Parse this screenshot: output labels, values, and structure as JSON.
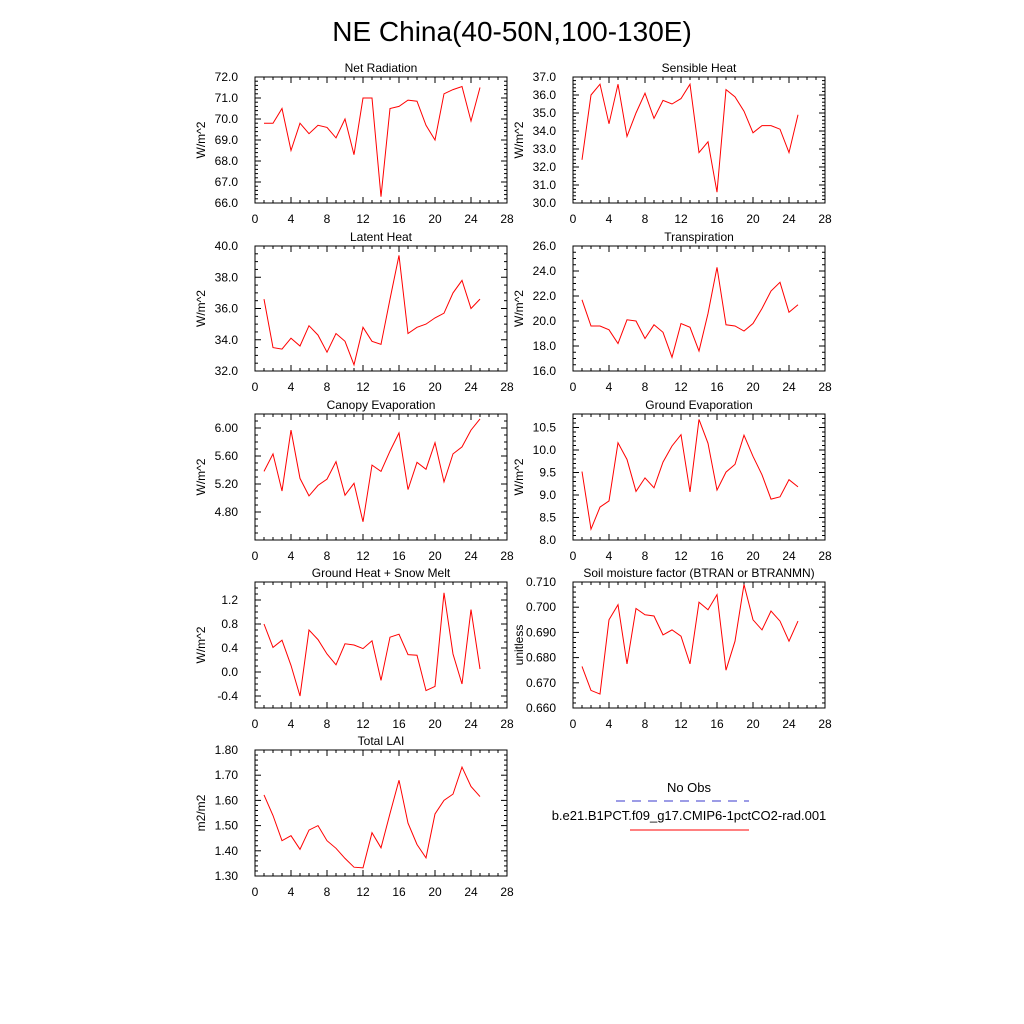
{
  "figure": {
    "title": "NE China(40-50N,100-130E)"
  },
  "legend": {
    "entries": [
      {
        "label": "No Obs",
        "color": "#3a3acc",
        "dash": true
      },
      {
        "label": "b.e21.B1PCT.f09_g17.CMIP6-1pctCO2-rad.001",
        "color": "#ff0000",
        "dash": false
      }
    ]
  },
  "chart_data": [
    {
      "type": "line",
      "title": "Net Radiation",
      "ylabel": "W/m^2",
      "xlim": [
        0,
        28
      ],
      "ylim": [
        66,
        72
      ],
      "xticks": [
        0,
        4,
        8,
        12,
        16,
        20,
        24,
        28
      ],
      "yticks": [
        66,
        67,
        68,
        69,
        70,
        71,
        72
      ],
      "ytick_labels": [
        "66.0",
        "67.0",
        "68.0",
        "69.0",
        "70.0",
        "71.0",
        "72.0"
      ],
      "yminor": 5,
      "x": [
        1,
        2,
        3,
        4,
        5,
        6,
        7,
        8,
        9,
        10,
        11,
        12,
        13,
        14,
        15,
        16,
        17,
        18,
        19,
        20,
        21,
        22,
        23,
        24,
        25
      ],
      "series": [
        {
          "color": "#ff0000",
          "values": [
            69.8,
            69.8,
            70.5,
            68.5,
            69.8,
            69.3,
            69.7,
            69.6,
            69.1,
            70.0,
            68.3,
            71.0,
            71.0,
            66.3,
            70.5,
            70.6,
            70.9,
            70.85,
            69.7,
            69.0,
            71.2,
            71.4,
            71.55,
            69.9,
            71.5
          ]
        }
      ]
    },
    {
      "type": "line",
      "title": "Sensible Heat",
      "ylabel": "W/m^2",
      "xlim": [
        0,
        28
      ],
      "ylim": [
        30,
        37
      ],
      "xticks": [
        0,
        4,
        8,
        12,
        16,
        20,
        24,
        28
      ],
      "yticks": [
        30,
        31,
        32,
        33,
        34,
        35,
        36,
        37
      ],
      "ytick_labels": [
        "30.0",
        "31.0",
        "32.0",
        "33.0",
        "34.0",
        "35.0",
        "36.0",
        "37.0"
      ],
      "yminor": 5,
      "x": [
        1,
        2,
        3,
        4,
        5,
        6,
        7,
        8,
        9,
        10,
        11,
        12,
        13,
        14,
        15,
        16,
        17,
        18,
        19,
        20,
        21,
        22,
        23,
        24,
        25
      ],
      "series": [
        {
          "color": "#ff0000",
          "values": [
            32.4,
            36.0,
            36.6,
            34.4,
            36.6,
            33.7,
            35.0,
            36.1,
            34.7,
            35.7,
            35.5,
            35.8,
            36.6,
            32.8,
            33.4,
            30.6,
            36.3,
            35.9,
            35.1,
            33.9,
            34.3,
            34.3,
            34.1,
            32.8,
            34.9
          ]
        }
      ]
    },
    {
      "type": "line",
      "title": "Latent Heat",
      "ylabel": "W/m^2",
      "xlim": [
        0,
        28
      ],
      "ylim": [
        32,
        40
      ],
      "xticks": [
        0,
        4,
        8,
        12,
        16,
        20,
        24,
        28
      ],
      "yticks": [
        32,
        34,
        36,
        38,
        40
      ],
      "ytick_labels": [
        "32.0",
        "34.0",
        "36.0",
        "38.0",
        "40.0"
      ],
      "yminor": 4,
      "x": [
        1,
        2,
        3,
        4,
        5,
        6,
        7,
        8,
        9,
        10,
        11,
        12,
        13,
        14,
        15,
        16,
        17,
        18,
        19,
        20,
        21,
        22,
        23,
        24,
        25
      ],
      "series": [
        {
          "color": "#ff0000",
          "values": [
            36.6,
            33.5,
            33.4,
            34.1,
            33.6,
            34.9,
            34.3,
            33.2,
            34.4,
            33.9,
            32.4,
            34.8,
            33.9,
            33.7,
            36.6,
            39.4,
            34.4,
            34.8,
            35.0,
            35.4,
            35.7,
            37.0,
            37.8,
            36.0,
            36.6
          ]
        }
      ]
    },
    {
      "type": "line",
      "title": "Transpiration",
      "ylabel": "W/m^2",
      "xlim": [
        0,
        28
      ],
      "ylim": [
        16,
        26
      ],
      "xticks": [
        0,
        4,
        8,
        12,
        16,
        20,
        24,
        28
      ],
      "yticks": [
        16,
        18,
        20,
        22,
        24,
        26
      ],
      "ytick_labels": [
        "16.0",
        "18.0",
        "20.0",
        "22.0",
        "24.0",
        "26.0"
      ],
      "yminor": 4,
      "x": [
        1,
        2,
        3,
        4,
        5,
        6,
        7,
        8,
        9,
        10,
        11,
        12,
        13,
        14,
        15,
        16,
        17,
        18,
        19,
        20,
        21,
        22,
        23,
        24,
        25
      ],
      "series": [
        {
          "color": "#ff0000",
          "values": [
            21.7,
            19.6,
            19.6,
            19.3,
            18.2,
            20.1,
            20.0,
            18.6,
            19.7,
            19.1,
            17.1,
            19.8,
            19.5,
            17.6,
            20.6,
            24.3,
            19.7,
            19.6,
            19.2,
            19.8,
            21.0,
            22.4,
            23.1,
            20.7,
            21.3
          ]
        }
      ]
    },
    {
      "type": "line",
      "title": "Canopy Evaporation",
      "ylabel": "W/m^2",
      "xlim": [
        0,
        28
      ],
      "ylim": [
        4.4,
        6.2
      ],
      "xticks": [
        0,
        4,
        8,
        12,
        16,
        20,
        24,
        28
      ],
      "yticks": [
        4.8,
        5.2,
        5.6,
        6.0
      ],
      "ytick_labels": [
        "4.80",
        "5.20",
        "5.60",
        "6.00"
      ],
      "yminor": 4,
      "x": [
        1,
        2,
        3,
        4,
        5,
        6,
        7,
        8,
        9,
        10,
        11,
        12,
        13,
        14,
        15,
        16,
        17,
        18,
        19,
        20,
        21,
        22,
        23,
        24,
        25
      ],
      "series": [
        {
          "color": "#ff0000",
          "values": [
            5.38,
            5.63,
            5.1,
            5.97,
            5.28,
            5.03,
            5.18,
            5.27,
            5.52,
            5.04,
            5.21,
            4.66,
            5.47,
            5.38,
            5.67,
            5.93,
            5.12,
            5.51,
            5.41,
            5.79,
            5.23,
            5.63,
            5.73,
            5.97,
            6.13
          ]
        }
      ]
    },
    {
      "type": "line",
      "title": "Ground Evaporation",
      "ylabel": "W/m^2",
      "xlim": [
        0,
        28
      ],
      "ylim": [
        8.0,
        10.8
      ],
      "xticks": [
        0,
        4,
        8,
        12,
        16,
        20,
        24,
        28
      ],
      "yticks": [
        8.0,
        8.5,
        9.0,
        9.5,
        10.0,
        10.5
      ],
      "ytick_labels": [
        "8.0",
        "8.5",
        "9.0",
        "9.5",
        "10.0",
        "10.5"
      ],
      "yminor": 5,
      "x": [
        1,
        2,
        3,
        4,
        5,
        6,
        7,
        8,
        9,
        10,
        11,
        12,
        13,
        14,
        15,
        16,
        17,
        18,
        19,
        20,
        21,
        22,
        23,
        24,
        25
      ],
      "series": [
        {
          "color": "#ff0000",
          "values": [
            9.52,
            8.24,
            8.73,
            8.87,
            10.16,
            9.79,
            9.08,
            9.38,
            9.16,
            9.73,
            10.09,
            10.34,
            9.07,
            10.68,
            10.15,
            9.11,
            9.51,
            9.68,
            10.33,
            9.86,
            9.45,
            8.91,
            8.96,
            9.34,
            9.18
          ]
        }
      ]
    },
    {
      "type": "line",
      "title": "Ground Heat + Snow Melt",
      "ylabel": "W/m^2",
      "xlim": [
        0,
        28
      ],
      "ylim": [
        -0.6,
        1.5
      ],
      "xticks": [
        0,
        4,
        8,
        12,
        16,
        20,
        24,
        28
      ],
      "yticks": [
        -0.4,
        0.0,
        0.4,
        0.8,
        1.2
      ],
      "ytick_labels": [
        "-0.4",
        "0.0",
        "0.4",
        "0.8",
        "1.2"
      ],
      "yminor": 4,
      "x": [
        1,
        2,
        3,
        4,
        5,
        6,
        7,
        8,
        9,
        10,
        11,
        12,
        13,
        14,
        15,
        16,
        17,
        18,
        19,
        20,
        21,
        22,
        23,
        24,
        25
      ],
      "series": [
        {
          "color": "#ff0000",
          "values": [
            0.8,
            0.41,
            0.53,
            0.11,
            -0.4,
            0.7,
            0.54,
            0.3,
            0.12,
            0.47,
            0.45,
            0.39,
            0.52,
            -0.14,
            0.58,
            0.63,
            0.29,
            0.28,
            -0.31,
            -0.24,
            1.32,
            0.3,
            -0.2,
            1.04,
            0.05
          ]
        }
      ]
    },
    {
      "type": "line",
      "title": "Soil moisture factor (BTRAN or BTRANMN)",
      "ylabel": "unitless",
      "xlim": [
        0,
        28
      ],
      "ylim": [
        0.66,
        0.71
      ],
      "xticks": [
        0,
        4,
        8,
        12,
        16,
        20,
        24,
        28
      ],
      "yticks": [
        0.66,
        0.67,
        0.68,
        0.69,
        0.7,
        0.71
      ],
      "ytick_labels": [
        "0.660",
        "0.670",
        "0.680",
        "0.690",
        "0.700",
        "0.710"
      ],
      "yminor": 5,
      "x": [
        1,
        2,
        3,
        4,
        5,
        6,
        7,
        8,
        9,
        10,
        11,
        12,
        13,
        14,
        15,
        16,
        17,
        18,
        19,
        20,
        21,
        22,
        23,
        24,
        25
      ],
      "series": [
        {
          "color": "#ff0000",
          "values": [
            0.6765,
            0.667,
            0.6655,
            0.695,
            0.701,
            0.6775,
            0.6995,
            0.697,
            0.6965,
            0.689,
            0.691,
            0.6885,
            0.6775,
            0.702,
            0.699,
            0.705,
            0.675,
            0.6865,
            0.709,
            0.695,
            0.691,
            0.6985,
            0.6945,
            0.6865,
            0.6945
          ]
        }
      ]
    },
    {
      "type": "line",
      "title": "Total LAI",
      "ylabel": "m2/m2",
      "xlim": [
        0,
        28
      ],
      "ylim": [
        1.3,
        1.8
      ],
      "xticks": [
        0,
        4,
        8,
        12,
        16,
        20,
        24,
        28
      ],
      "yticks": [
        1.3,
        1.4,
        1.5,
        1.6,
        1.7,
        1.8
      ],
      "ytick_labels": [
        "1.30",
        "1.40",
        "1.50",
        "1.60",
        "1.70",
        "1.80"
      ],
      "yminor": 5,
      "x": [
        1,
        2,
        3,
        4,
        5,
        6,
        7,
        8,
        9,
        10,
        11,
        12,
        13,
        14,
        15,
        16,
        17,
        18,
        19,
        20,
        21,
        22,
        23,
        24,
        25
      ],
      "series": [
        {
          "color": "#ff0000",
          "values": [
            1.622,
            1.54,
            1.44,
            1.46,
            1.406,
            1.482,
            1.5,
            1.44,
            1.41,
            1.37,
            1.335,
            1.332,
            1.472,
            1.412,
            1.548,
            1.68,
            1.51,
            1.425,
            1.372,
            1.546,
            1.6,
            1.625,
            1.732,
            1.655,
            1.615
          ]
        }
      ]
    }
  ]
}
